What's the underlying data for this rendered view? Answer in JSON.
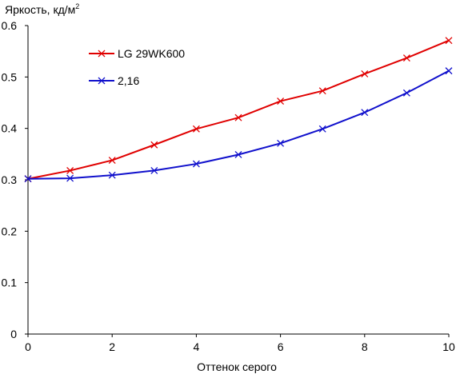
{
  "chart_data": {
    "type": "line",
    "title": "",
    "ylabel": "Яркость, кд/м",
    "ylabel_superscript": "2",
    "xlabel": "Оттенок серого",
    "xlim": [
      0,
      10
    ],
    "ylim": [
      0,
      0.6
    ],
    "xticks": [
      0,
      2,
      4,
      6,
      8,
      10
    ],
    "yticks": [
      0,
      0.1,
      0.2,
      0.3,
      0.4,
      0.5,
      0.6
    ],
    "xtick_labels": [
      "0",
      "2",
      "4",
      "6",
      "8",
      "10"
    ],
    "ytick_labels": [
      "0",
      "0.1",
      "0.2",
      "0.3",
      "0.4",
      "0.5",
      "0.6"
    ],
    "grid": false,
    "legend_position": "top-left",
    "x": [
      0,
      1,
      2,
      3,
      4,
      5,
      6,
      7,
      8,
      9,
      10
    ],
    "series": [
      {
        "name": "LG 29WK600",
        "color": "#e00000",
        "marker": "x",
        "values": [
          0.302,
          0.318,
          0.338,
          0.368,
          0.399,
          0.421,
          0.453,
          0.473,
          0.506,
          0.537,
          0.571
        ]
      },
      {
        "name": "2,16",
        "color": "#1010cc",
        "marker": "x",
        "values": [
          0.302,
          0.303,
          0.309,
          0.318,
          0.331,
          0.349,
          0.371,
          0.399,
          0.431,
          0.469,
          0.512
        ]
      }
    ]
  }
}
